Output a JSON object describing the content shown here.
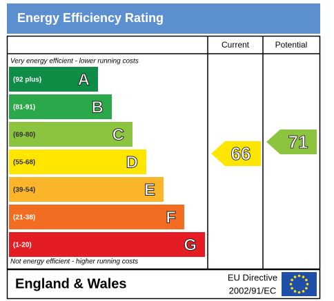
{
  "header": {
    "title": "Energy Efficiency Rating"
  },
  "columns": [
    "Current",
    "Potential"
  ],
  "notes": {
    "top": "Very energy efficient - lower running costs",
    "bottom": "Not energy efficient - higher running costs"
  },
  "bands": [
    {
      "range": "(92 plus)",
      "letter": "A",
      "color": "#0f8c46"
    },
    {
      "range": "(81-91)",
      "letter": "B",
      "color": "#2aa84a"
    },
    {
      "range": "(69-80)",
      "letter": "C",
      "color": "#8cc43f"
    },
    {
      "range": "(55-68)",
      "letter": "D",
      "color": "#ffe600"
    },
    {
      "range": "(39-54)",
      "letter": "E",
      "color": "#fbb52a"
    },
    {
      "range": "(21-38)",
      "letter": "F",
      "color": "#f26d21"
    },
    {
      "range": "(1-20)",
      "letter": "G",
      "color": "#e31d23"
    }
  ],
  "ratings": {
    "current": 66,
    "potential": 71
  },
  "footer": {
    "region": "England & Wales",
    "directive": [
      "EU Directive",
      "2002/91/EC"
    ]
  }
}
